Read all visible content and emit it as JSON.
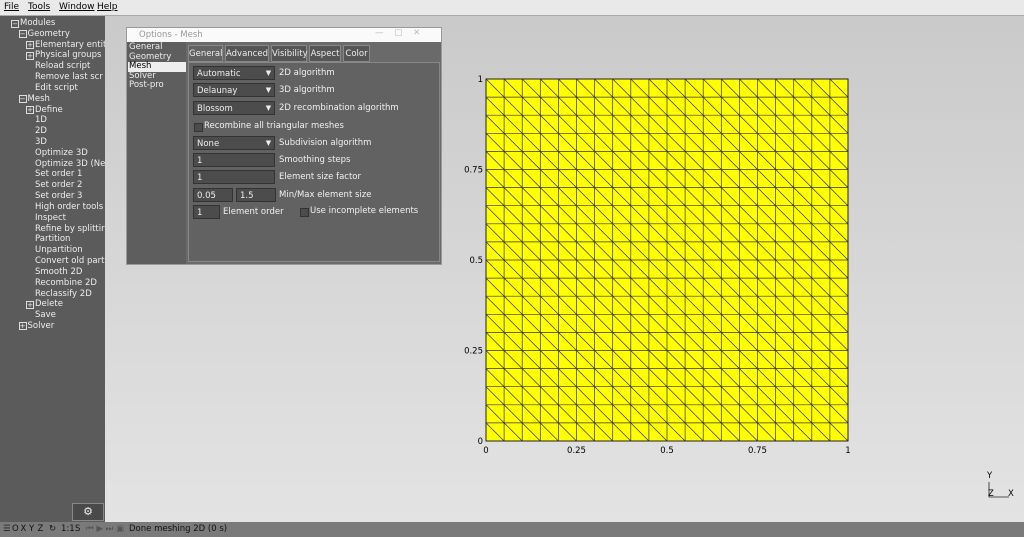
{
  "menu": [
    "File",
    "Tools",
    "Window",
    "Help"
  ],
  "tree": {
    "label": "Modules",
    "children": [
      {
        "label": "Geometry",
        "children": [
          {
            "label": "Elementary entit",
            "expandable": true
          },
          {
            "label": "Physical groups",
            "expandable": true
          },
          {
            "label": "Reload script"
          },
          {
            "label": "Remove last scr"
          },
          {
            "label": "Edit script"
          }
        ]
      },
      {
        "label": "Mesh",
        "children": [
          {
            "label": "Define",
            "expandable": true
          },
          {
            "label": "1D"
          },
          {
            "label": "2D"
          },
          {
            "label": "3D"
          },
          {
            "label": "Optimize 3D"
          },
          {
            "label": "Optimize 3D (Ne"
          },
          {
            "label": "Set order 1"
          },
          {
            "label": "Set order 2"
          },
          {
            "label": "Set order 3"
          },
          {
            "label": "High order tools"
          },
          {
            "label": "Inspect"
          },
          {
            "label": "Refine by splittir"
          },
          {
            "label": "Partition"
          },
          {
            "label": "Unpartition"
          },
          {
            "label": "Convert old part"
          },
          {
            "label": "Smooth 2D"
          },
          {
            "label": "Recombine 2D"
          },
          {
            "label": "Reclassify 2D"
          },
          {
            "label": "Delete",
            "expandable": true
          },
          {
            "label": "Save"
          }
        ]
      },
      {
        "label": "Solver",
        "expandable": true
      }
    ]
  },
  "dialog": {
    "title": "Options - Mesh",
    "sections": [
      "General",
      "Geometry",
      "Mesh",
      "Solver",
      "Post-pro"
    ],
    "selected_section": 2,
    "tabs": [
      "General",
      "Advanced",
      "Visibility",
      "Aspect",
      "Color"
    ],
    "active_tab": 0,
    "fields": [
      {
        "kind": "choice",
        "value": "Automatic",
        "label": "2D algorithm"
      },
      {
        "kind": "choice",
        "value": "Delaunay",
        "label": "3D algorithm"
      },
      {
        "kind": "choice",
        "value": "Blossom",
        "label": "2D recombination algorithm"
      },
      {
        "kind": "checkbox",
        "label": "Recombine all triangular meshes"
      },
      {
        "kind": "choice",
        "value": "None",
        "label": "Subdivision algorithm"
      },
      {
        "kind": "input",
        "value": "1",
        "label": "Smoothing steps"
      },
      {
        "kind": "input",
        "value": "1",
        "label": "Element size factor"
      },
      {
        "kind": "pair",
        "values": [
          "0.05",
          "1.5"
        ],
        "label": "Min/Max element size"
      },
      {
        "kind": "short-input",
        "value": "1",
        "label": "Element order",
        "extra": {
          "kind": "checkbox",
          "label": "Use incomplete elements"
        }
      }
    ]
  },
  "graphics": {
    "mesh_color": "#ffff00",
    "divisions": 20,
    "x_labels": [
      "0",
      "0.25",
      "0.5",
      "0.75",
      "1"
    ],
    "y_labels": [
      "0",
      "0.25",
      "0.5",
      "0.75",
      "1"
    ],
    "triad": [
      "Y",
      "Z",
      "X"
    ]
  },
  "status": {
    "view_buttons": [
      "O",
      "X",
      "Y",
      "Z"
    ],
    "scale": "1:1",
    "s": "S",
    "message": "Done meshing 2D (0 s)"
  }
}
